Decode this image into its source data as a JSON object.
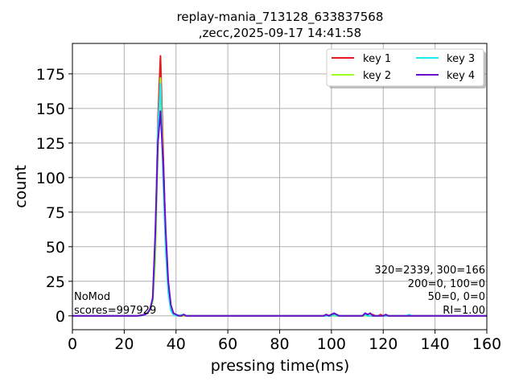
{
  "chart_data": {
    "type": "line",
    "title_line1": "replay-mania_713128_633837568",
    "title_line2": ",zecc,2025-09-17 14:41:58",
    "xlabel": "pressing time(ms)",
    "ylabel": "count",
    "xlim": [
      0,
      160
    ],
    "ylim": [
      -10,
      197
    ],
    "xticks": [
      0,
      20,
      40,
      60,
      80,
      100,
      120,
      140,
      160
    ],
    "yticks": [
      0,
      25,
      50,
      75,
      100,
      125,
      150,
      175
    ],
    "grid": true,
    "legend_position": "top-right",
    "legend_columns": 2,
    "series": [
      {
        "name": "key 1",
        "color": "#e41a1c",
        "points": [
          [
            0,
            0
          ],
          [
            25,
            0
          ],
          [
            27,
            0.5
          ],
          [
            28,
            1
          ],
          [
            29,
            2
          ],
          [
            30,
            5
          ],
          [
            31,
            12
          ],
          [
            32,
            45
          ],
          [
            33,
            140
          ],
          [
            34,
            188
          ],
          [
            35,
            120
          ],
          [
            36,
            55
          ],
          [
            37,
            20
          ],
          [
            38,
            6
          ],
          [
            39,
            2
          ],
          [
            40,
            0.5
          ],
          [
            42,
            0
          ],
          [
            45,
            0
          ],
          [
            60,
            0
          ],
          [
            97,
            0
          ],
          [
            98,
            1
          ],
          [
            99,
            0
          ],
          [
            100,
            0
          ],
          [
            101,
            1
          ],
          [
            102,
            0
          ],
          [
            110,
            0
          ],
          [
            112,
            0
          ],
          [
            113,
            1
          ],
          [
            114,
            0
          ],
          [
            115,
            0
          ],
          [
            116,
            1
          ],
          [
            117,
            0
          ],
          [
            118,
            0
          ],
          [
            119,
            1
          ],
          [
            120,
            0
          ],
          [
            130,
            0
          ],
          [
            160,
            0
          ]
        ]
      },
      {
        "name": "key 2",
        "color": "#9cff1e",
        "points": [
          [
            0,
            0
          ],
          [
            26,
            0
          ],
          [
            28,
            1
          ],
          [
            29,
            2
          ],
          [
            30,
            4
          ],
          [
            31,
            10
          ],
          [
            32,
            40
          ],
          [
            33,
            120
          ],
          [
            34,
            172
          ],
          [
            35,
            110
          ],
          [
            36,
            50
          ],
          [
            37,
            18
          ],
          [
            38,
            5
          ],
          [
            39,
            1
          ],
          [
            40,
            0
          ],
          [
            44,
            0
          ],
          [
            60,
            0
          ],
          [
            98,
            0
          ],
          [
            99,
            0.5
          ],
          [
            100,
            1
          ],
          [
            101,
            0
          ],
          [
            113,
            0
          ],
          [
            114,
            1
          ],
          [
            115,
            0
          ],
          [
            160,
            0
          ]
        ]
      },
      {
        "name": "key 3",
        "color": "#19e9f0",
        "points": [
          [
            0,
            0
          ],
          [
            26,
            0
          ],
          [
            28,
            1
          ],
          [
            29,
            2
          ],
          [
            30,
            5
          ],
          [
            31,
            12
          ],
          [
            32,
            55
          ],
          [
            33,
            135
          ],
          [
            34,
            168
          ],
          [
            35,
            100
          ],
          [
            36,
            48
          ],
          [
            37,
            17
          ],
          [
            38,
            4
          ],
          [
            39,
            1
          ],
          [
            40,
            0
          ],
          [
            43,
            1
          ],
          [
            44,
            0
          ],
          [
            60,
            0
          ],
          [
            100,
            0
          ],
          [
            101,
            1
          ],
          [
            102,
            0
          ],
          [
            112,
            0
          ],
          [
            113,
            1
          ],
          [
            114,
            0
          ],
          [
            129,
            0
          ],
          [
            130,
            1
          ],
          [
            131,
            0
          ],
          [
            160,
            0
          ]
        ]
      },
      {
        "name": "key 4",
        "color": "#6a0dcf",
        "points": [
          [
            0,
            0
          ],
          [
            25,
            0
          ],
          [
            27,
            0.5
          ],
          [
            28,
            1
          ],
          [
            29,
            2
          ],
          [
            30,
            5
          ],
          [
            31,
            13
          ],
          [
            32,
            60
          ],
          [
            33,
            125
          ],
          [
            34,
            148
          ],
          [
            35,
            112
          ],
          [
            36,
            62
          ],
          [
            37,
            25
          ],
          [
            38,
            8
          ],
          [
            39,
            2
          ],
          [
            40,
            1
          ],
          [
            41,
            0
          ],
          [
            42,
            0
          ],
          [
            43,
            1
          ],
          [
            44,
            0
          ],
          [
            60,
            0
          ],
          [
            97,
            0
          ],
          [
            98,
            1
          ],
          [
            99,
            0
          ],
          [
            100,
            1
          ],
          [
            101,
            2
          ],
          [
            102,
            1
          ],
          [
            103,
            0
          ],
          [
            110,
            0
          ],
          [
            112,
            0
          ],
          [
            113,
            2
          ],
          [
            114,
            1
          ],
          [
            115,
            2
          ],
          [
            116,
            0
          ],
          [
            120,
            0
          ],
          [
            121,
            1
          ],
          [
            122,
            0
          ],
          [
            160,
            0
          ]
        ]
      }
    ],
    "annotation_left": [
      "NoMod",
      "scores=997929"
    ],
    "annotation_right": [
      "320=2339, 300=166",
      "200=0, 100=0",
      "50=0, 0=0",
      "RI=1.00"
    ]
  }
}
